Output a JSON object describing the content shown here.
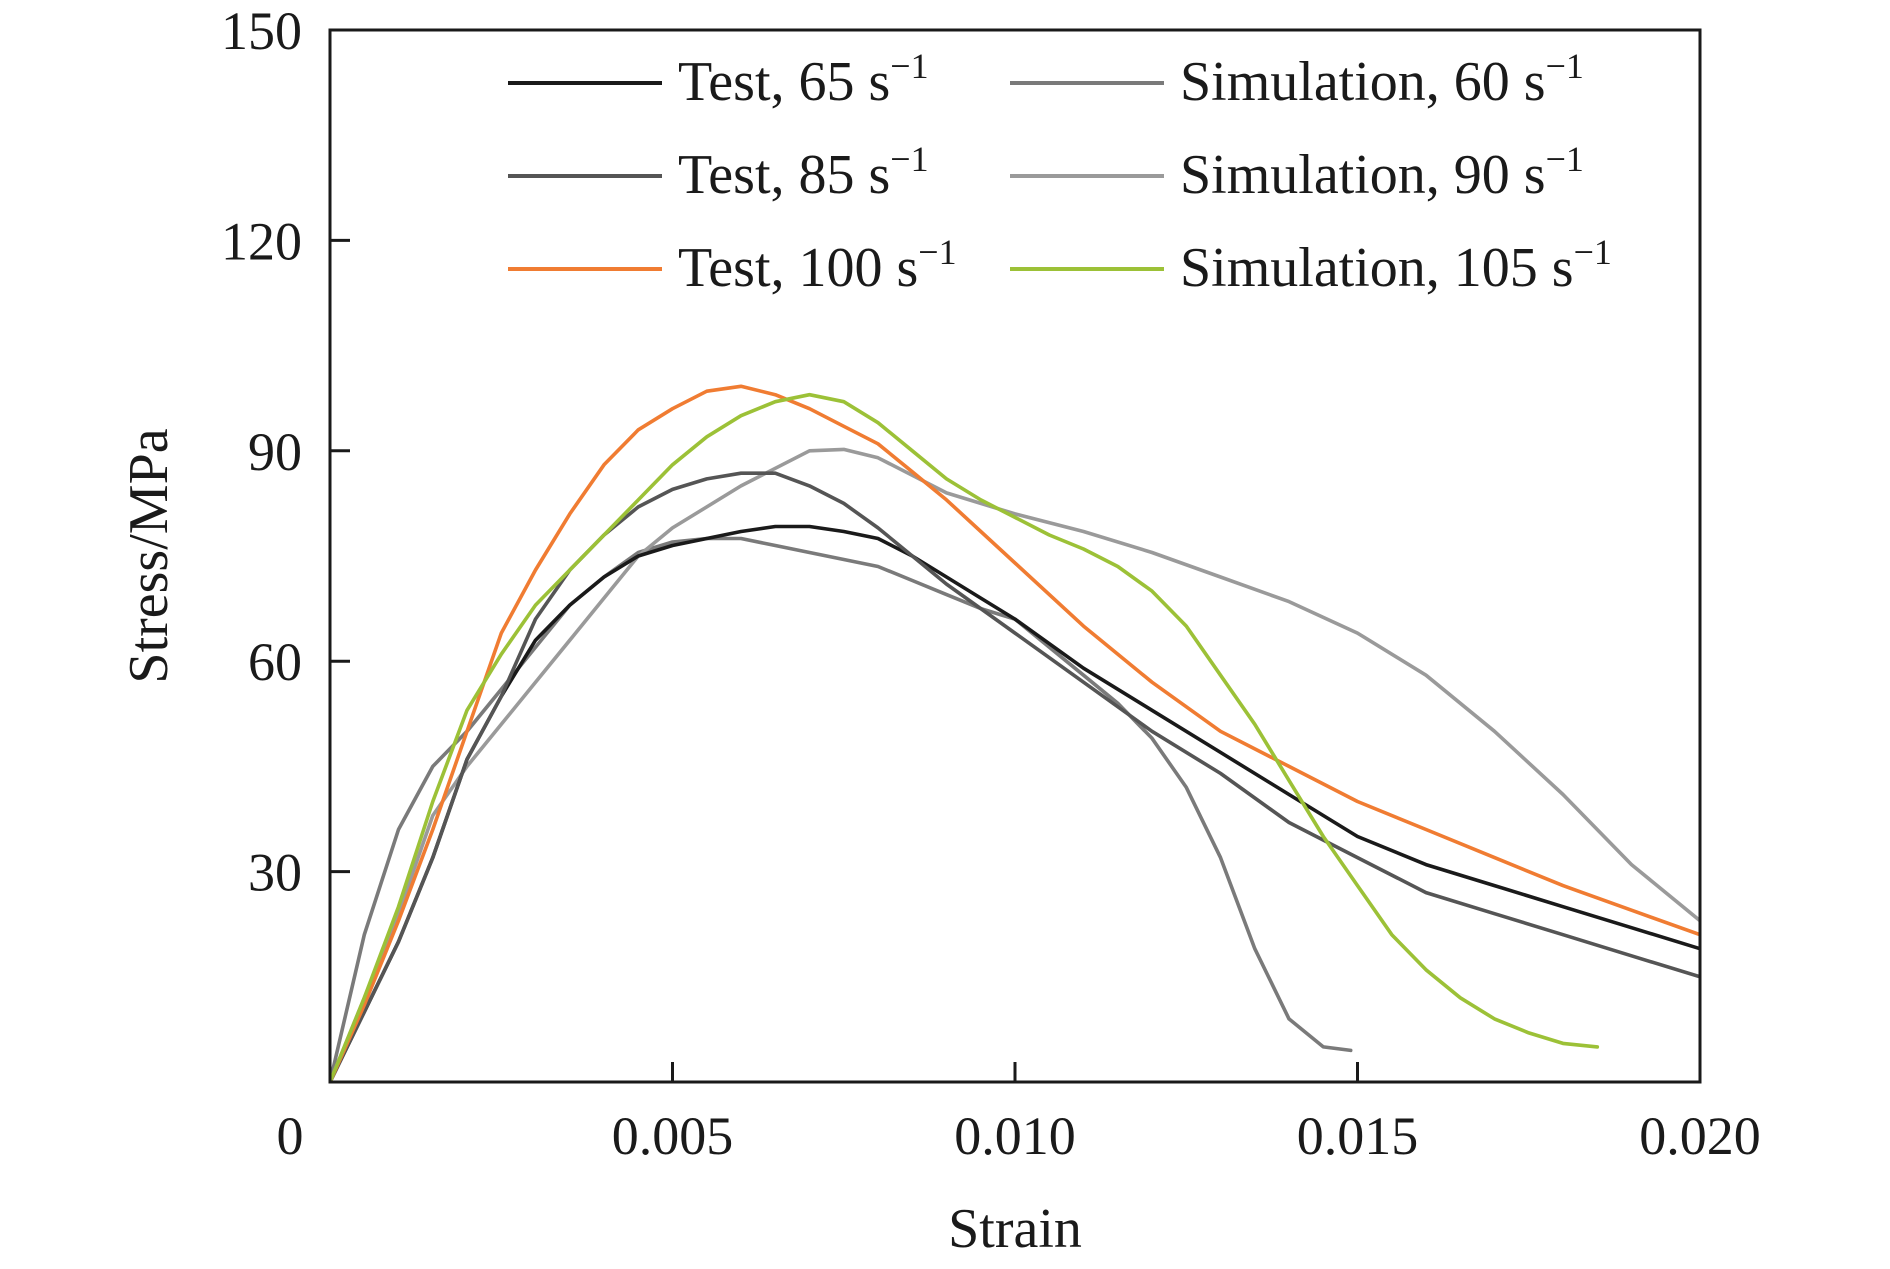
{
  "chart_data": {
    "type": "line",
    "title": "",
    "xlabel": "Strain",
    "ylabel": "Stress/MPa",
    "xlim": [
      0,
      0.02
    ],
    "ylim": [
      0,
      150
    ],
    "x_ticks": [
      {
        "value": 0,
        "label": "0"
      },
      {
        "value": 0.005,
        "label": "0.005"
      },
      {
        "value": 0.01,
        "label": "0.010"
      },
      {
        "value": 0.015,
        "label": "0.015"
      },
      {
        "value": 0.02,
        "label": "0.020"
      }
    ],
    "y_ticks": [
      {
        "value": 30,
        "label": "30"
      },
      {
        "value": 60,
        "label": "60"
      },
      {
        "value": 90,
        "label": "90"
      },
      {
        "value": 120,
        "label": "120"
      },
      {
        "value": 150,
        "label": "150"
      }
    ],
    "grid": false,
    "legend_position": "top-right",
    "series": [
      {
        "name": "Test, 65 s",
        "name_sup": "−1",
        "color": "#1a1a1a",
        "points": [
          [
            0,
            0
          ],
          [
            0.0005,
            10
          ],
          [
            0.001,
            20
          ],
          [
            0.0015,
            32
          ],
          [
            0.002,
            46
          ],
          [
            0.0025,
            55
          ],
          [
            0.003,
            63
          ],
          [
            0.0035,
            68
          ],
          [
            0.004,
            72
          ],
          [
            0.0045,
            75
          ],
          [
            0.005,
            76.5
          ],
          [
            0.0055,
            77.5
          ],
          [
            0.006,
            78.5
          ],
          [
            0.0065,
            79.2
          ],
          [
            0.007,
            79.2
          ],
          [
            0.0075,
            78.5
          ],
          [
            0.008,
            77.5
          ],
          [
            0.0085,
            75
          ],
          [
            0.009,
            72
          ],
          [
            0.0095,
            69
          ],
          [
            0.01,
            66
          ],
          [
            0.011,
            59
          ],
          [
            0.012,
            53
          ],
          [
            0.013,
            47
          ],
          [
            0.014,
            41
          ],
          [
            0.015,
            35
          ],
          [
            0.016,
            31
          ],
          [
            0.017,
            28
          ],
          [
            0.018,
            25
          ],
          [
            0.019,
            22
          ],
          [
            0.02,
            19
          ]
        ]
      },
      {
        "name": "Test, 85 s",
        "name_sup": "−1",
        "color": "#555555",
        "points": [
          [
            0,
            0
          ],
          [
            0.0005,
            10
          ],
          [
            0.001,
            20
          ],
          [
            0.0015,
            32
          ],
          [
            0.002,
            46
          ],
          [
            0.0025,
            55
          ],
          [
            0.003,
            66
          ],
          [
            0.0035,
            73
          ],
          [
            0.004,
            78
          ],
          [
            0.0045,
            82
          ],
          [
            0.005,
            84.5
          ],
          [
            0.0055,
            86
          ],
          [
            0.006,
            86.8
          ],
          [
            0.0065,
            86.8
          ],
          [
            0.007,
            85
          ],
          [
            0.0075,
            82.5
          ],
          [
            0.008,
            79
          ],
          [
            0.0085,
            75
          ],
          [
            0.009,
            71
          ],
          [
            0.0095,
            67.5
          ],
          [
            0.01,
            64
          ],
          [
            0.011,
            57
          ],
          [
            0.012,
            50
          ],
          [
            0.013,
            44
          ],
          [
            0.014,
            37
          ],
          [
            0.015,
            32
          ],
          [
            0.016,
            27
          ],
          [
            0.017,
            24
          ],
          [
            0.018,
            21
          ],
          [
            0.019,
            18
          ],
          [
            0.02,
            15
          ]
        ]
      },
      {
        "name": "Test, 100 s",
        "name_sup": "−1",
        "color": "#f07c32",
        "points": [
          [
            0,
            0
          ],
          [
            0.0005,
            11
          ],
          [
            0.001,
            23
          ],
          [
            0.0015,
            36
          ],
          [
            0.002,
            50
          ],
          [
            0.0025,
            64
          ],
          [
            0.003,
            73
          ],
          [
            0.0035,
            81
          ],
          [
            0.004,
            88
          ],
          [
            0.0045,
            93
          ],
          [
            0.005,
            96
          ],
          [
            0.0055,
            98.5
          ],
          [
            0.006,
            99.2
          ],
          [
            0.0065,
            98
          ],
          [
            0.007,
            96
          ],
          [
            0.0075,
            93.5
          ],
          [
            0.008,
            91
          ],
          [
            0.0085,
            87
          ],
          [
            0.009,
            83
          ],
          [
            0.0095,
            78.5
          ],
          [
            0.01,
            74
          ],
          [
            0.011,
            65
          ],
          [
            0.012,
            57
          ],
          [
            0.013,
            50
          ],
          [
            0.014,
            45
          ],
          [
            0.015,
            40
          ],
          [
            0.016,
            36
          ],
          [
            0.017,
            32
          ],
          [
            0.018,
            28
          ],
          [
            0.019,
            24.5
          ],
          [
            0.02,
            21
          ]
        ]
      },
      {
        "name": "Simulation, 60 s",
        "name_sup": "−1",
        "color": "#7a7a7a",
        "points": [
          [
            0,
            0
          ],
          [
            0.0005,
            21
          ],
          [
            0.001,
            36
          ],
          [
            0.0015,
            45
          ],
          [
            0.002,
            50
          ],
          [
            0.0025,
            56
          ],
          [
            0.003,
            62
          ],
          [
            0.0035,
            68
          ],
          [
            0.004,
            72
          ],
          [
            0.0045,
            75.5
          ],
          [
            0.005,
            77
          ],
          [
            0.0055,
            77.5
          ],
          [
            0.006,
            77.5
          ],
          [
            0.0065,
            76.5
          ],
          [
            0.007,
            75.5
          ],
          [
            0.0075,
            74.5
          ],
          [
            0.008,
            73.5
          ],
          [
            0.0085,
            71.5
          ],
          [
            0.009,
            69.5
          ],
          [
            0.0095,
            67.5
          ],
          [
            0.01,
            66
          ],
          [
            0.0105,
            62
          ],
          [
            0.011,
            58
          ],
          [
            0.0115,
            54
          ],
          [
            0.012,
            49
          ],
          [
            0.0125,
            42
          ],
          [
            0.013,
            32
          ],
          [
            0.0135,
            19
          ],
          [
            0.014,
            9
          ],
          [
            0.0145,
            5
          ],
          [
            0.0149,
            4.5
          ]
        ]
      },
      {
        "name": "Simulation, 90 s",
        "name_sup": "−1",
        "color": "#9a9a9a",
        "points": [
          [
            0,
            0
          ],
          [
            0.0005,
            12
          ],
          [
            0.001,
            24
          ],
          [
            0.0015,
            38
          ],
          [
            0.002,
            45
          ],
          [
            0.0025,
            51
          ],
          [
            0.003,
            57
          ],
          [
            0.0035,
            63
          ],
          [
            0.004,
            69
          ],
          [
            0.0045,
            75
          ],
          [
            0.005,
            79
          ],
          [
            0.0055,
            82
          ],
          [
            0.006,
            85
          ],
          [
            0.0065,
            87.5
          ],
          [
            0.007,
            90
          ],
          [
            0.0075,
            90.2
          ],
          [
            0.008,
            89
          ],
          [
            0.0085,
            86.5
          ],
          [
            0.009,
            84
          ],
          [
            0.0095,
            82.5
          ],
          [
            0.01,
            81
          ],
          [
            0.011,
            78.5
          ],
          [
            0.012,
            75.5
          ],
          [
            0.013,
            72
          ],
          [
            0.014,
            68.5
          ],
          [
            0.015,
            64
          ],
          [
            0.016,
            58
          ],
          [
            0.017,
            50
          ],
          [
            0.018,
            41
          ],
          [
            0.019,
            31
          ],
          [
            0.02,
            23
          ]
        ]
      },
      {
        "name": "Simulation, 105 s",
        "name_sup": "−1",
        "color": "#9cc137",
        "points": [
          [
            0,
            0
          ],
          [
            0.0005,
            12
          ],
          [
            0.001,
            25
          ],
          [
            0.0015,
            40
          ],
          [
            0.002,
            53
          ],
          [
            0.0025,
            61
          ],
          [
            0.003,
            68
          ],
          [
            0.0035,
            73
          ],
          [
            0.004,
            78
          ],
          [
            0.0045,
            83
          ],
          [
            0.005,
            88
          ],
          [
            0.0055,
            92
          ],
          [
            0.006,
            95
          ],
          [
            0.0065,
            97
          ],
          [
            0.007,
            98
          ],
          [
            0.0075,
            97
          ],
          [
            0.008,
            94
          ],
          [
            0.0085,
            90
          ],
          [
            0.009,
            86
          ],
          [
            0.0095,
            83
          ],
          [
            0.01,
            80.5
          ],
          [
            0.0105,
            78
          ],
          [
            0.011,
            76
          ],
          [
            0.0115,
            73.5
          ],
          [
            0.012,
            70
          ],
          [
            0.0125,
            65
          ],
          [
            0.013,
            58
          ],
          [
            0.0135,
            51
          ],
          [
            0.014,
            43
          ],
          [
            0.0145,
            35
          ],
          [
            0.015,
            28
          ],
          [
            0.0155,
            21
          ],
          [
            0.016,
            16
          ],
          [
            0.0165,
            12
          ],
          [
            0.017,
            9
          ],
          [
            0.0175,
            7
          ],
          [
            0.018,
            5.5
          ],
          [
            0.0185,
            5
          ]
        ]
      }
    ]
  }
}
